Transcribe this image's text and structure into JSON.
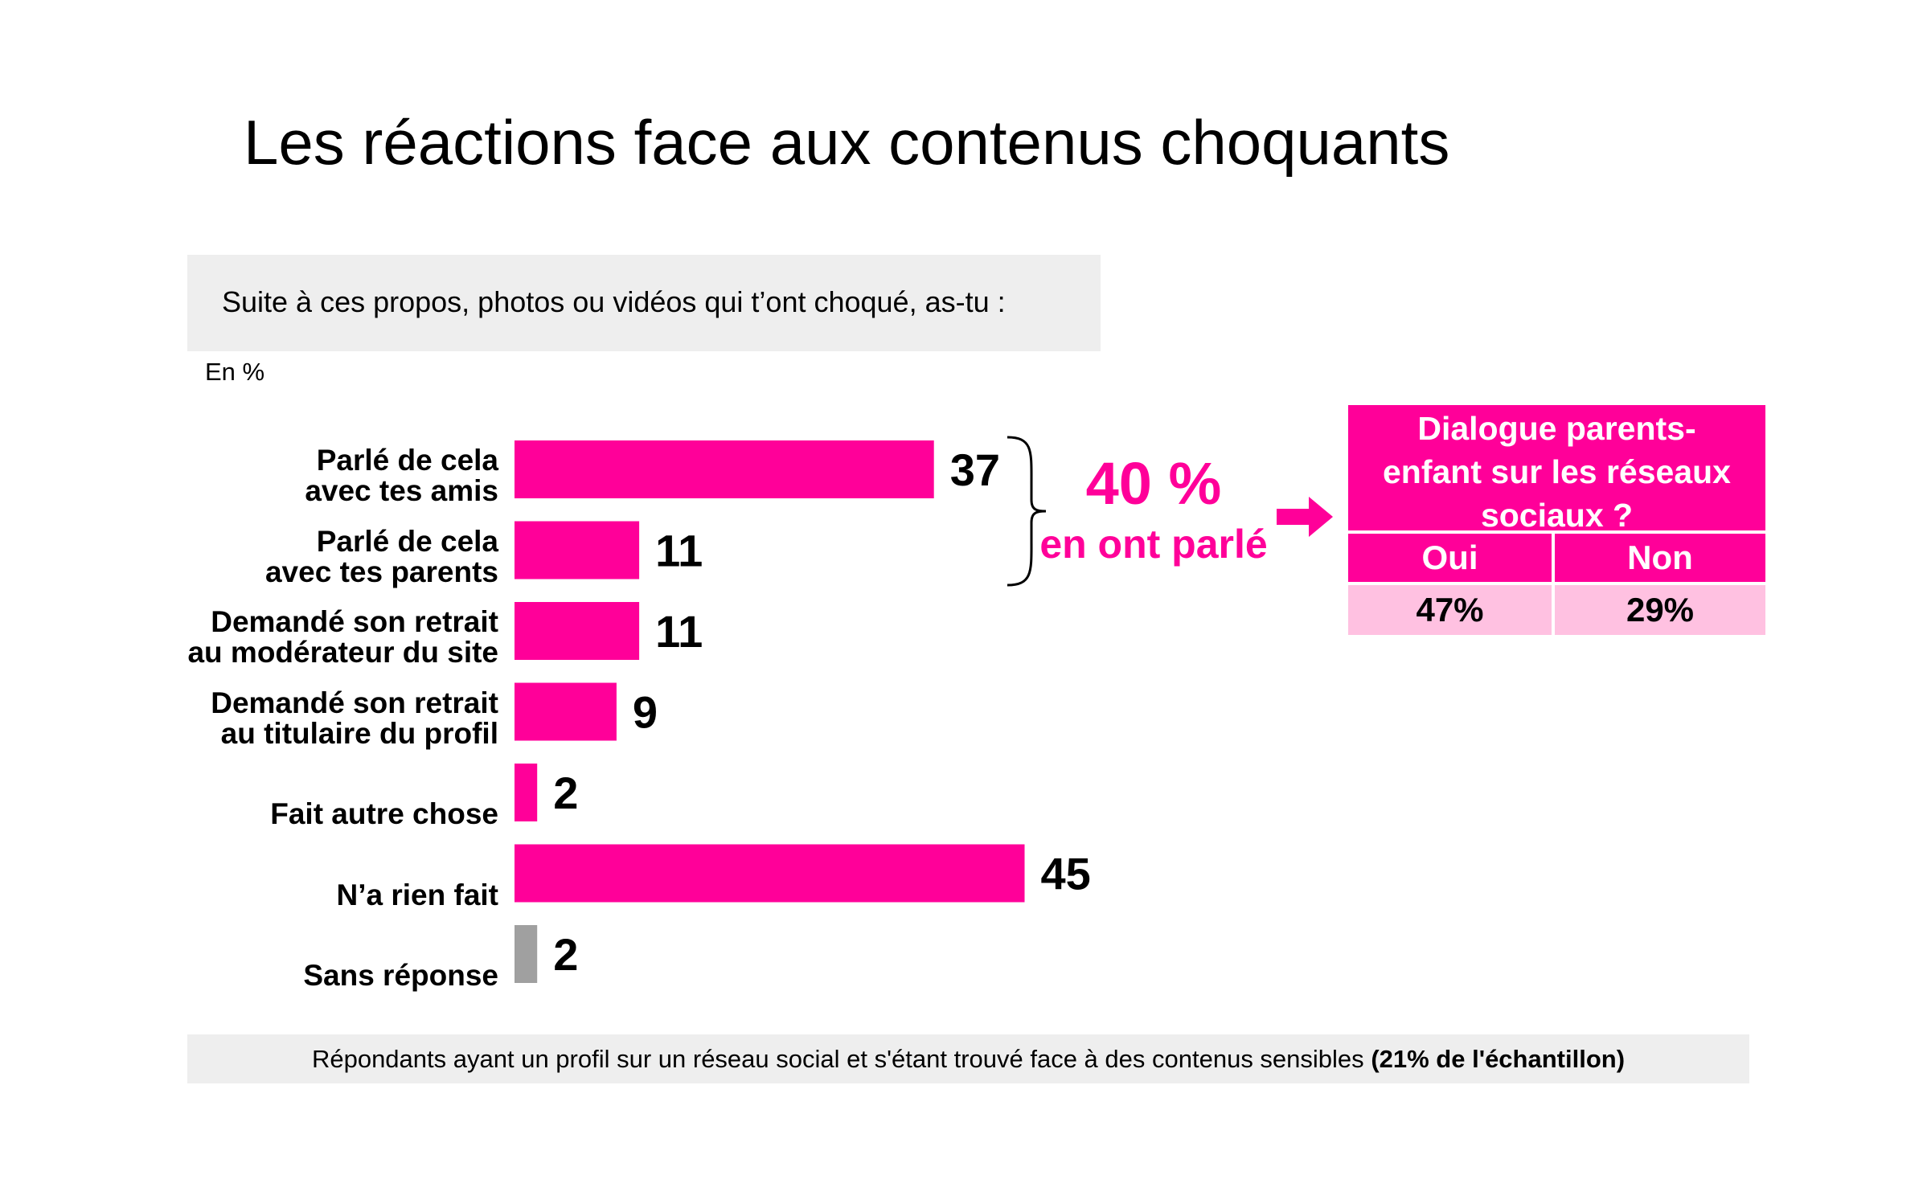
{
  "title": "Les réactions face aux contenus choquants",
  "question": "Suite à ces propos, photos ou vidéos qui t’ont choqué, as-tu :",
  "unit": "En %",
  "chart_data": {
    "type": "bar",
    "orientation": "horizontal",
    "categories": [
      [
        "Parlé de cela",
        "avec tes amis"
      ],
      [
        "Parlé de cela",
        "avec tes parents"
      ],
      [
        "Demandé son retrait",
        "au modérateur du site"
      ],
      [
        "Demandé son retrait",
        "au titulaire du profil"
      ],
      [
        "Fait autre chose"
      ],
      [
        "N’a rien fait"
      ],
      [
        "Sans réponse"
      ]
    ],
    "values": [
      37,
      11,
      11,
      9,
      2,
      45,
      2
    ],
    "value_labels": [
      "37",
      "11",
      "11",
      "9",
      "2",
      "45",
      "2"
    ],
    "colors": [
      "#ff0099",
      "#ff0099",
      "#ff0099",
      "#ff0099",
      "#ff0099",
      "#ff0099",
      "#a0a0a0"
    ],
    "accent": "#ff0099",
    "grid": false,
    "legend": "none"
  },
  "summary": {
    "percent": "40 %",
    "text": "en ont parlé"
  },
  "dialogue": {
    "header": [
      "Dialogue parents-",
      "enfant sur les réseaux",
      "sociaux ?"
    ],
    "columns": [
      "Oui",
      "Non"
    ],
    "values": [
      "47%",
      "29%"
    ],
    "header_color": "#ff0099",
    "value_color": "#ffc1e1"
  },
  "footer": {
    "text": "Répondants ayant un profil sur un réseau social et s'étant trouvé face à des contenus sensibles",
    "bold": "(21% de l'échantillon)"
  }
}
